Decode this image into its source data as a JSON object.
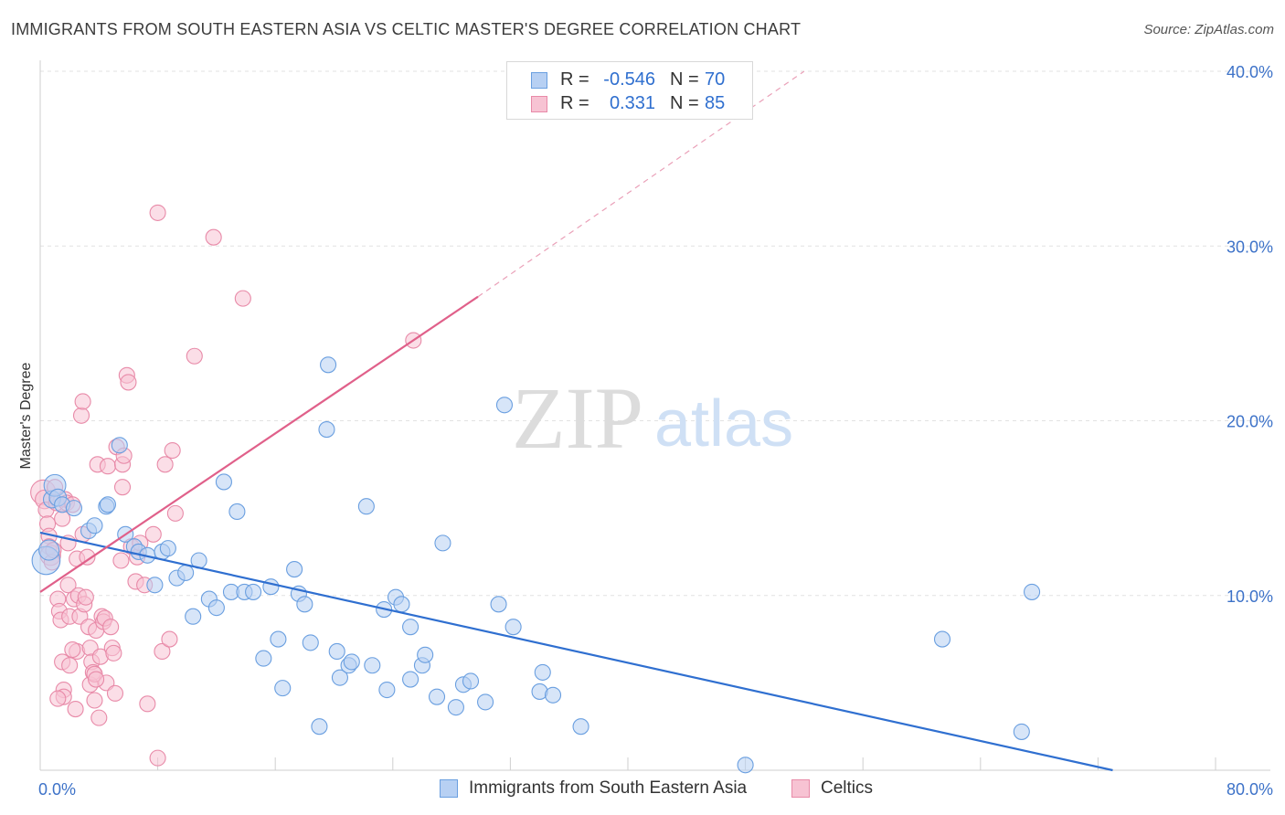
{
  "title": "IMMIGRANTS FROM SOUTH EASTERN ASIA VS CELTIC MASTER'S DEGREE CORRELATION CHART",
  "source": "Source: ZipAtlas.com",
  "watermark": {
    "zip": "ZIP",
    "atlas": "atlas"
  },
  "legend": {
    "rows": [
      {
        "r_label": "R =",
        "r_value": "-0.546",
        "n_label": "N =",
        "n_value": "70",
        "fill": "#b7d0f3",
        "stroke": "#6a9fe0"
      },
      {
        "r_label": "R =",
        "r_value": "0.331",
        "n_label": "N =",
        "n_value": "85",
        "fill": "#f7c3d3",
        "stroke": "#e88aa8"
      }
    ]
  },
  "bottom_legend": [
    {
      "label": "Immigrants from South Eastern Asia",
      "fill": "#b7d0f3",
      "stroke": "#6a9fe0"
    },
    {
      "label": "Celtics",
      "fill": "#f7c3d3",
      "stroke": "#e88aa8"
    }
  ],
  "chart_data": {
    "type": "scatter",
    "title": "IMMIGRANTS FROM SOUTH EASTERN ASIA VS CELTIC MASTER'S DEGREE CORRELATION CHART",
    "xlabel": "",
    "ylabel": "Master's Degree",
    "xlim": [
      0,
      80
    ],
    "ylim": [
      0,
      40
    ],
    "x_tick_labels": [
      "0.0%",
      "80.0%"
    ],
    "y_ticks": [
      10,
      20,
      30,
      40
    ],
    "y_tick_labels": [
      "10.0%",
      "20.0%",
      "30.0%",
      "40.0%"
    ],
    "grid": true,
    "legend_position": "top-center",
    "colors": {
      "blue_line": "#2f6fd0",
      "pink_line": "#e0608a",
      "axis_labels": "#3d72c8"
    },
    "series": [
      {
        "name": "Immigrants from South Eastern Asia",
        "color": "#6a9fe0",
        "fill": "#b7d0f3",
        "trend": {
          "x0": 0,
          "y0": 13.6,
          "x1": 73.0,
          "y1": 0,
          "dashed_to": null
        },
        "points": [
          [
            0.4,
            12.0,
            1.8
          ],
          [
            0.6,
            12.6,
            1.3
          ],
          [
            0.8,
            15.5,
            1.1
          ],
          [
            1.0,
            16.3,
            1.4
          ],
          [
            1.2,
            15.6,
            1.1
          ],
          [
            1.5,
            15.2,
            1.0
          ],
          [
            2.3,
            15.0,
            1.0
          ],
          [
            3.3,
            13.7,
            1.0
          ],
          [
            3.7,
            14.0,
            1.0
          ],
          [
            4.5,
            15.1,
            1.0
          ],
          [
            4.6,
            15.2,
            1.0
          ],
          [
            5.4,
            18.6,
            1.0
          ],
          [
            5.8,
            13.5,
            1.0
          ],
          [
            6.4,
            12.8,
            1.0
          ],
          [
            6.7,
            12.5,
            1.0
          ],
          [
            7.3,
            12.3,
            1.0
          ],
          [
            7.8,
            10.6,
            1.0
          ],
          [
            8.3,
            12.5,
            1.0
          ],
          [
            8.7,
            12.7,
            1.0
          ],
          [
            9.3,
            11.0,
            1.0
          ],
          [
            9.9,
            11.3,
            1.0
          ],
          [
            10.4,
            8.8,
            1.0
          ],
          [
            10.8,
            12.0,
            1.0
          ],
          [
            11.5,
            9.8,
            1.0
          ],
          [
            12.0,
            9.3,
            1.0
          ],
          [
            12.5,
            16.5,
            1.0
          ],
          [
            13.0,
            10.2,
            1.0
          ],
          [
            13.4,
            14.8,
            1.0
          ],
          [
            13.9,
            10.2,
            1.0
          ],
          [
            14.5,
            10.2,
            1.0
          ],
          [
            15.2,
            6.4,
            1.0
          ],
          [
            15.7,
            10.5,
            1.0
          ],
          [
            16.2,
            7.5,
            1.0
          ],
          [
            16.5,
            4.7,
            1.0
          ],
          [
            17.3,
            11.5,
            1.0
          ],
          [
            17.6,
            10.1,
            1.0
          ],
          [
            18.0,
            9.5,
            1.0
          ],
          [
            18.4,
            7.3,
            1.0
          ],
          [
            19.0,
            2.5,
            1.0
          ],
          [
            19.5,
            19.5,
            1.0
          ],
          [
            19.6,
            23.2,
            1.0
          ],
          [
            20.2,
            6.8,
            1.0
          ],
          [
            20.4,
            5.3,
            1.0
          ],
          [
            21.0,
            6.0,
            1.0
          ],
          [
            21.2,
            6.2,
            1.0
          ],
          [
            22.2,
            15.1,
            1.0
          ],
          [
            22.6,
            6.0,
            1.0
          ],
          [
            23.4,
            9.2,
            1.0
          ],
          [
            23.6,
            4.6,
            1.0
          ],
          [
            24.2,
            9.9,
            1.0
          ],
          [
            24.6,
            9.5,
            1.0
          ],
          [
            25.2,
            5.2,
            1.0
          ],
          [
            25.2,
            8.2,
            1.0
          ],
          [
            26.0,
            6.0,
            1.0
          ],
          [
            26.2,
            6.6,
            1.0
          ],
          [
            27.0,
            4.2,
            1.0
          ],
          [
            27.4,
            13.0,
            1.0
          ],
          [
            28.3,
            3.6,
            1.0
          ],
          [
            28.8,
            4.9,
            1.0
          ],
          [
            29.3,
            5.1,
            1.0
          ],
          [
            30.3,
            3.9,
            1.0
          ],
          [
            31.2,
            9.5,
            1.0
          ],
          [
            31.6,
            20.9,
            1.0
          ],
          [
            32.2,
            8.2,
            1.0
          ],
          [
            34.0,
            4.5,
            1.0
          ],
          [
            34.2,
            5.6,
            1.0
          ],
          [
            34.9,
            4.3,
            1.0
          ],
          [
            36.8,
            2.5,
            1.0
          ],
          [
            48.0,
            0.3,
            1.0
          ],
          [
            61.4,
            7.5,
            1.0
          ],
          [
            66.8,
            2.2,
            1.0
          ],
          [
            67.5,
            10.2,
            1.0
          ]
        ]
      },
      {
        "name": "Celtics",
        "color": "#e88aa8",
        "fill": "#f7c3d3",
        "trend": {
          "x0": 0,
          "y0": 10.2,
          "x1": 29.8,
          "y1": 27.1,
          "dashed_to": {
            "x": 52.0,
            "y": 40.0
          }
        },
        "points": [
          [
            0.2,
            15.9,
            1.6
          ],
          [
            0.3,
            15.5,
            1.2
          ],
          [
            0.4,
            14.9,
            1.0
          ],
          [
            0.5,
            14.1,
            1.0
          ],
          [
            0.6,
            13.4,
            1.0
          ],
          [
            0.6,
            12.8,
            1.0
          ],
          [
            0.7,
            12.3,
            1.3
          ],
          [
            0.8,
            11.9,
            1.0
          ],
          [
            0.9,
            12.6,
            1.0
          ],
          [
            1.0,
            16.2,
            1.0
          ],
          [
            1.1,
            15.3,
            1.0
          ],
          [
            1.2,
            9.8,
            1.0
          ],
          [
            1.3,
            9.1,
            1.0
          ],
          [
            1.4,
            8.6,
            1.0
          ],
          [
            1.5,
            6.2,
            1.0
          ],
          [
            1.6,
            4.6,
            1.0
          ],
          [
            1.6,
            4.2,
            1.0
          ],
          [
            1.7,
            15.5,
            1.0
          ],
          [
            1.8,
            15.3,
            1.0
          ],
          [
            1.9,
            10.6,
            1.0
          ],
          [
            1.9,
            13.0,
            1.0
          ],
          [
            2.0,
            8.8,
            1.0
          ],
          [
            2.0,
            6.0,
            1.0
          ],
          [
            2.2,
            15.2,
            1.0
          ],
          [
            2.3,
            9.8,
            1.0
          ],
          [
            2.4,
            3.5,
            1.0
          ],
          [
            2.5,
            12.1,
            1.0
          ],
          [
            2.5,
            6.8,
            1.0
          ],
          [
            2.6,
            10.0,
            1.0
          ],
          [
            2.7,
            8.8,
            1.0
          ],
          [
            2.8,
            20.3,
            1.0
          ],
          [
            2.9,
            21.1,
            1.0
          ],
          [
            2.9,
            13.5,
            1.0
          ],
          [
            3.0,
            9.5,
            1.0
          ],
          [
            3.1,
            9.9,
            1.0
          ],
          [
            3.2,
            12.2,
            1.0
          ],
          [
            3.3,
            8.2,
            1.0
          ],
          [
            3.4,
            4.9,
            1.0
          ],
          [
            3.4,
            7.0,
            1.0
          ],
          [
            3.5,
            6.2,
            1.0
          ],
          [
            3.6,
            5.6,
            1.0
          ],
          [
            3.7,
            5.5,
            1.0
          ],
          [
            3.7,
            4.0,
            1.0
          ],
          [
            3.8,
            8.0,
            1.0
          ],
          [
            3.9,
            17.5,
            1.0
          ],
          [
            4.0,
            3.0,
            1.0
          ],
          [
            4.1,
            6.5,
            1.0
          ],
          [
            4.2,
            8.8,
            1.0
          ],
          [
            4.3,
            8.5,
            1.0
          ],
          [
            4.4,
            8.7,
            1.0
          ],
          [
            4.5,
            5.0,
            1.0
          ],
          [
            4.6,
            17.4,
            1.0
          ],
          [
            4.8,
            8.2,
            1.0
          ],
          [
            4.9,
            7.0,
            1.0
          ],
          [
            5.0,
            6.7,
            1.0
          ],
          [
            5.1,
            4.4,
            1.0
          ],
          [
            5.2,
            18.5,
            1.0
          ],
          [
            5.5,
            12.0,
            1.0
          ],
          [
            5.6,
            16.2,
            1.0
          ],
          [
            5.6,
            17.5,
            1.0
          ],
          [
            5.7,
            18.0,
            1.0
          ],
          [
            5.9,
            22.6,
            1.0
          ],
          [
            6.0,
            22.2,
            1.0
          ],
          [
            6.2,
            12.8,
            1.0
          ],
          [
            6.5,
            10.8,
            1.0
          ],
          [
            6.6,
            12.2,
            1.0
          ],
          [
            6.8,
            13.0,
            1.0
          ],
          [
            7.1,
            10.6,
            1.0
          ],
          [
            7.3,
            3.8,
            1.0
          ],
          [
            7.7,
            13.5,
            1.0
          ],
          [
            8.0,
            0.7,
            1.0
          ],
          [
            8.0,
            31.9,
            1.0
          ],
          [
            8.3,
            6.8,
            1.0
          ],
          [
            8.5,
            17.5,
            1.0
          ],
          [
            8.8,
            7.5,
            1.0
          ],
          [
            9.0,
            18.3,
            1.0
          ],
          [
            9.2,
            14.7,
            1.0
          ],
          [
            10.5,
            23.7,
            1.0
          ],
          [
            11.8,
            30.5,
            1.0
          ],
          [
            13.8,
            27.0,
            1.0
          ],
          [
            25.4,
            24.6,
            1.0
          ],
          [
            1.2,
            4.1,
            1.0
          ],
          [
            2.2,
            6.9,
            1.0
          ],
          [
            3.8,
            5.2,
            1.0
          ],
          [
            1.5,
            14.4,
            1.0
          ]
        ]
      }
    ]
  }
}
